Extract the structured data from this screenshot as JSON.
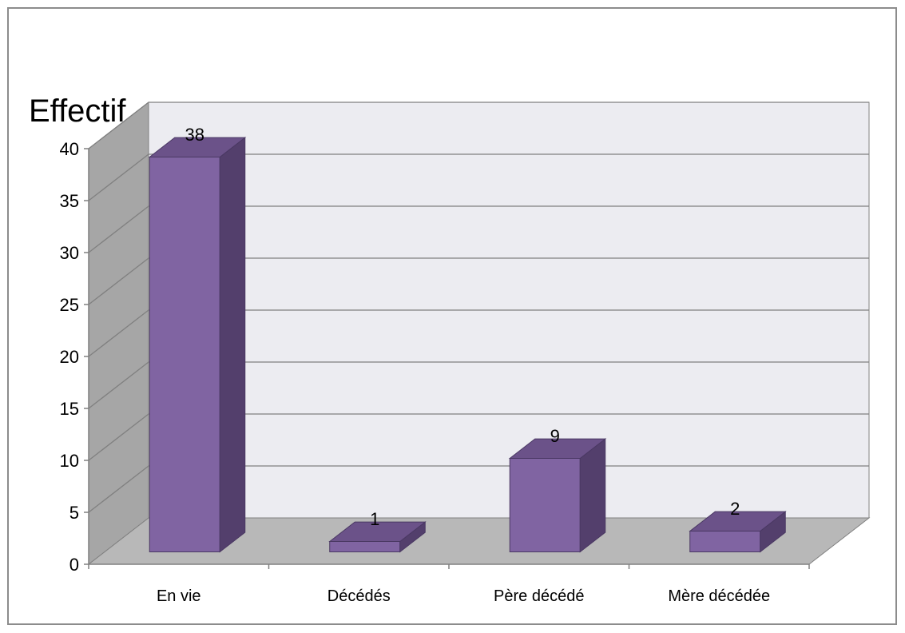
{
  "chart_data": {
    "type": "bar",
    "ylabel": "Effectif",
    "categories": [
      "En vie",
      "Décédés",
      "Père décédé",
      "Mère décédée"
    ],
    "values": [
      38,
      1,
      9,
      2
    ],
    "data_labels": [
      "38",
      "1",
      "9",
      "2"
    ],
    "ylim": [
      0,
      40
    ],
    "yticks": [
      "0",
      "5",
      "10",
      "15",
      "20",
      "25",
      "30",
      "35",
      "40"
    ],
    "grid": true,
    "style": "3d",
    "colors": {
      "bar_front": "#8064a2",
      "bar_side": "#533f6c",
      "bar_top": "#6b5289",
      "back_wall": "#ececf1",
      "side_wall": "#a6a6a6",
      "floor": "#b8b8b8",
      "gridline": "#808080"
    }
  }
}
